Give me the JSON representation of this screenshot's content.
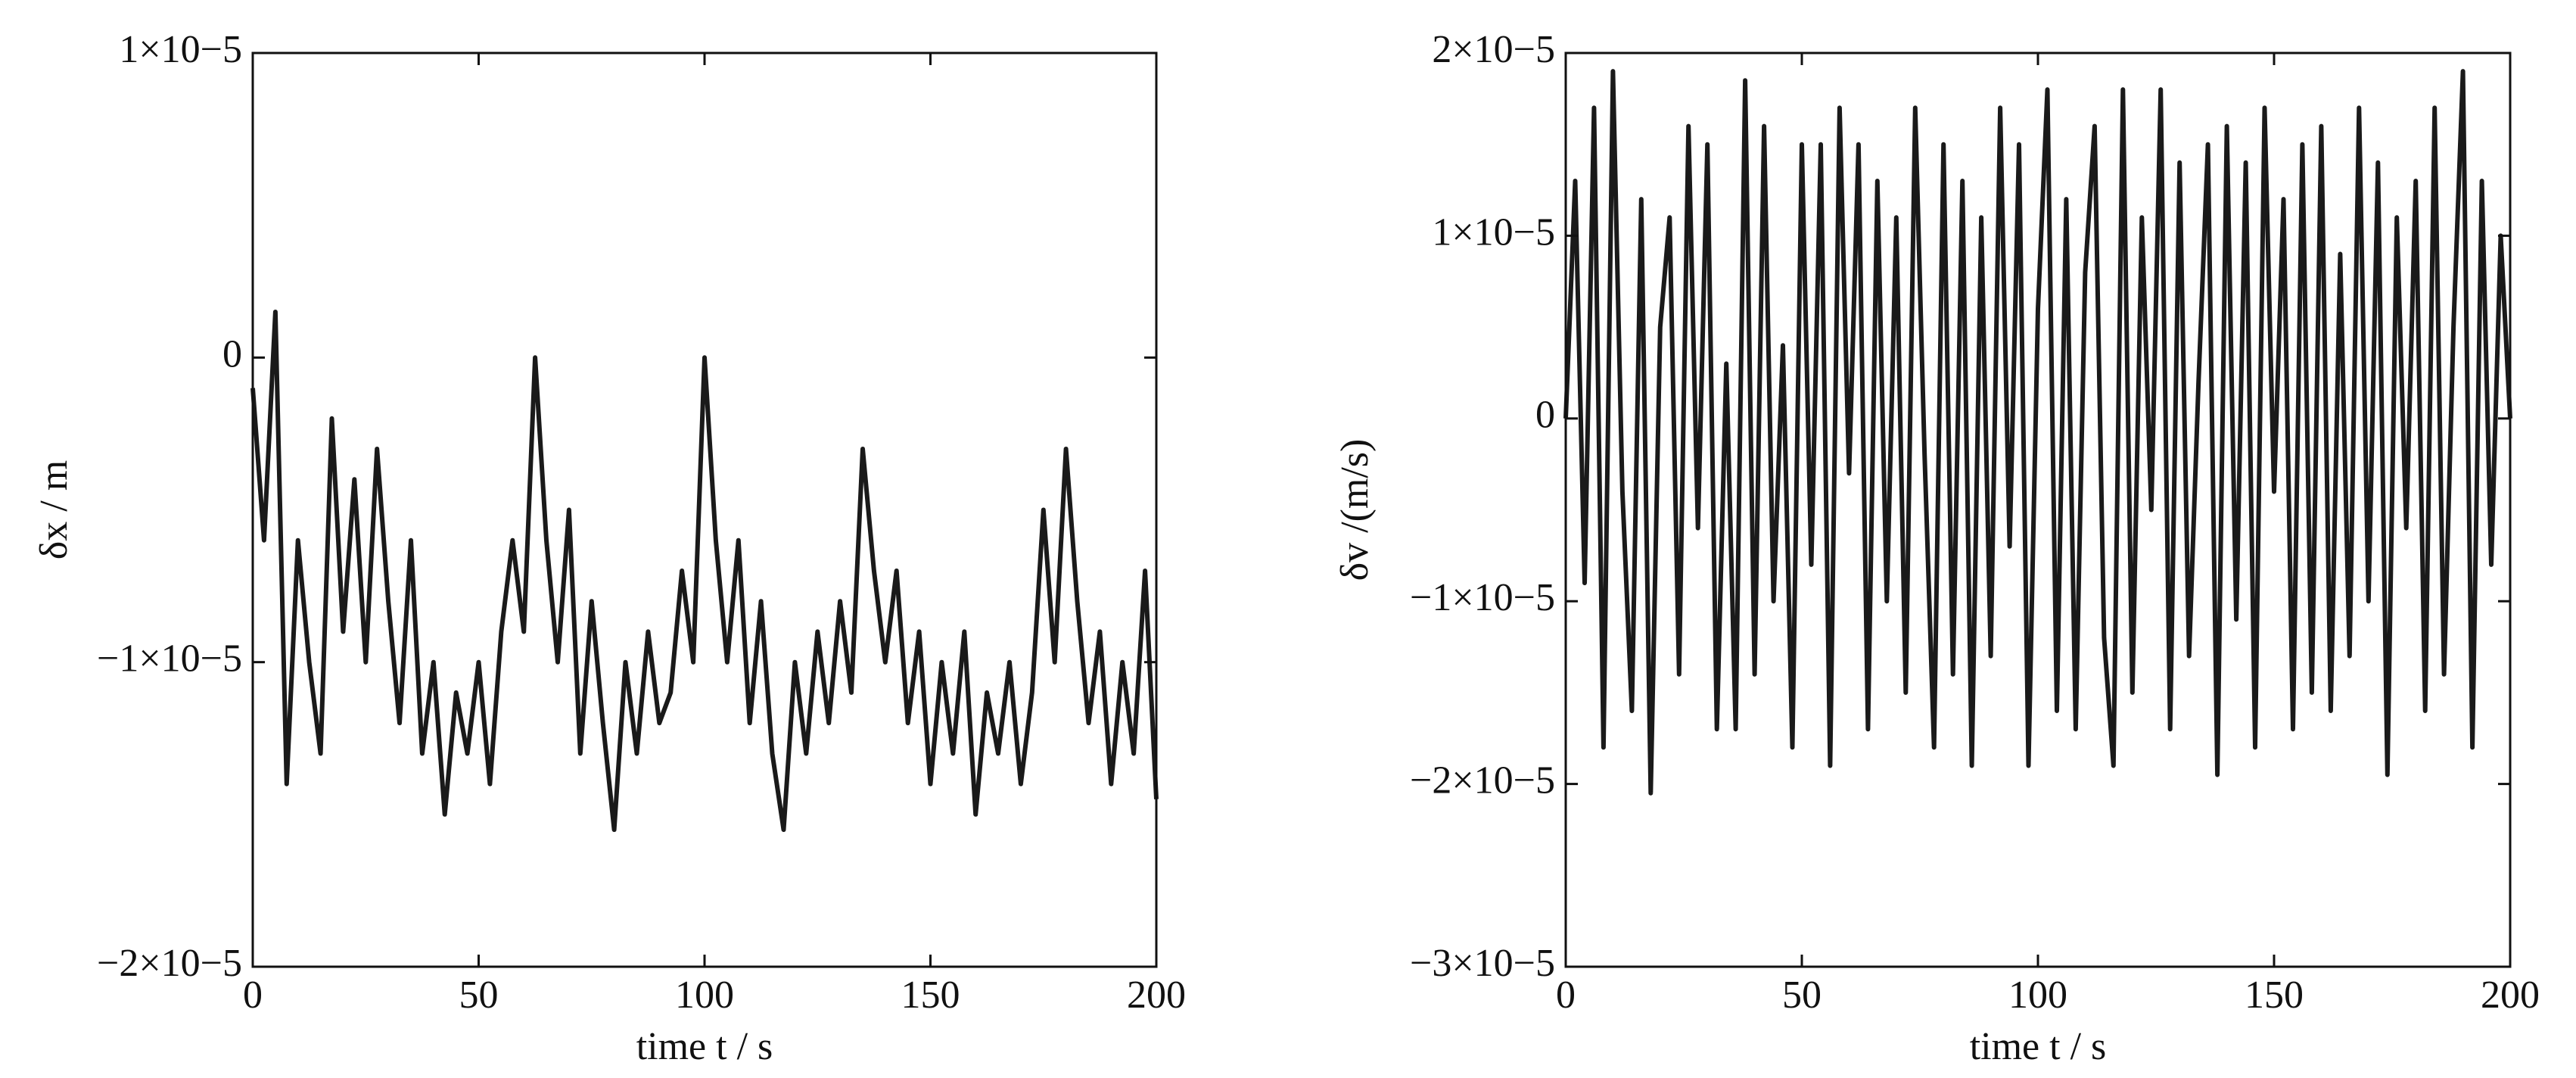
{
  "chart_data": [
    {
      "type": "line",
      "ylabel": "δx / m",
      "xlabel": "time t / s",
      "xlim": [
        0,
        200
      ],
      "xticks": [
        0,
        50,
        100,
        150,
        200
      ],
      "ylim": [
        -2e-05,
        1e-05
      ],
      "yticks": [
        {
          "value": -2e-05,
          "label": "−2×10−5"
        },
        {
          "value": -1e-05,
          "label": "−1×10−5"
        },
        0,
        {
          "value": 1e-05,
          "label": "1×10−5"
        }
      ],
      "series": [
        {
          "color": "#1a1a1a",
          "x": [
            0,
            2.5,
            5,
            7.5,
            10,
            12.5,
            15,
            17.5,
            20,
            22.5,
            25,
            27.5,
            30,
            32.5,
            35,
            37.5,
            40,
            42.5,
            45,
            47.5,
            50,
            52.5,
            55,
            57.5,
            60,
            62.5,
            65,
            67.5,
            70,
            72.5,
            75,
            77.5,
            80,
            82.5,
            85,
            87.5,
            90,
            92.5,
            95,
            97.5,
            100,
            102.5,
            105,
            107.5,
            110,
            112.5,
            115,
            117.5,
            120,
            122.5,
            125,
            127.5,
            130,
            132.5,
            135,
            137.5,
            140,
            142.5,
            145,
            147.5,
            150,
            152.5,
            155,
            157.5,
            160,
            162.5,
            165,
            167.5,
            170,
            172.5,
            175,
            177.5,
            180,
            182.5,
            185,
            187.5,
            190,
            192.5,
            195,
            197.5,
            200
          ],
          "values": [
            -1e-06,
            -6e-06,
            1.5e-06,
            -1.4e-05,
            -6e-06,
            -1e-05,
            -1.3e-05,
            -2e-06,
            -9e-06,
            -4e-06,
            -1e-05,
            -3e-06,
            -8e-06,
            -1.2e-05,
            -6e-06,
            -1.3e-05,
            -1e-05,
            -1.5e-05,
            -1.1e-05,
            -1.3e-05,
            -1e-05,
            -1.4e-05,
            -9e-06,
            -6e-06,
            -9e-06,
            0,
            -6e-06,
            -1e-05,
            -5e-06,
            -1.3e-05,
            -8e-06,
            -1.2e-05,
            -1.55e-05,
            -1e-05,
            -1.3e-05,
            -9e-06,
            -1.2e-05,
            -1.1e-05,
            -7e-06,
            -1e-05,
            0,
            -6e-06,
            -1e-05,
            -6e-06,
            -1.2e-05,
            -8e-06,
            -1.3e-05,
            -1.55e-05,
            -1e-05,
            -1.3e-05,
            -9e-06,
            -1.2e-05,
            -8e-06,
            -1.1e-05,
            -3e-06,
            -7e-06,
            -1e-05,
            -7e-06,
            -1.2e-05,
            -9e-06,
            -1.4e-05,
            -1e-05,
            -1.3e-05,
            -9e-06,
            -1.5e-05,
            -1.1e-05,
            -1.3e-05,
            -1e-05,
            -1.4e-05,
            -1.1e-05,
            -5e-06,
            -1e-05,
            -3e-06,
            -8e-06,
            -1.2e-05,
            -9e-06,
            -1.4e-05,
            -1e-05,
            -1.3e-05,
            -7e-06,
            -1.45e-05
          ]
        }
      ]
    },
    {
      "type": "line",
      "ylabel": "δv /(m/s)",
      "xlabel": "time t / s",
      "xlim": [
        0,
        200
      ],
      "xticks": [
        0,
        50,
        100,
        150,
        200
      ],
      "ylim": [
        -3e-05,
        2e-05
      ],
      "yticks": [
        {
          "value": -3e-05,
          "label": "−3×10−5"
        },
        {
          "value": -2e-05,
          "label": "−2×10−5"
        },
        {
          "value": -1e-05,
          "label": "−1×10−5"
        },
        0,
        {
          "value": 1e-05,
          "label": "1×10−5"
        },
        {
          "value": 2e-05,
          "label": "2×10−5"
        }
      ],
      "series": [
        {
          "color": "#1a1a1a",
          "x": [
            0,
            2,
            4,
            6,
            8,
            10,
            12,
            14,
            16,
            18,
            20,
            22,
            24,
            26,
            28,
            30,
            32,
            34,
            36,
            38,
            40,
            42,
            44,
            46,
            48,
            50,
            52,
            54,
            56,
            58,
            60,
            62,
            64,
            66,
            68,
            70,
            72,
            74,
            76,
            78,
            80,
            82,
            84,
            86,
            88,
            90,
            92,
            94,
            96,
            98,
            100,
            102,
            104,
            106,
            108,
            110,
            112,
            114,
            116,
            118,
            120,
            122,
            124,
            126,
            128,
            130,
            132,
            134,
            136,
            138,
            140,
            142,
            144,
            146,
            148,
            150,
            152,
            154,
            156,
            158,
            160,
            162,
            164,
            166,
            168,
            170,
            172,
            174,
            176,
            178,
            180,
            182,
            184,
            186,
            188,
            190,
            192,
            194,
            196,
            198,
            200
          ],
          "values": [
            0,
            1.3e-05,
            -9e-06,
            1.7e-05,
            -1.8e-05,
            1.9e-05,
            -4e-06,
            -1.6e-05,
            1.2e-05,
            -2.05e-05,
            5e-06,
            1.1e-05,
            -1.4e-05,
            1.6e-05,
            -6e-06,
            1.5e-05,
            -1.7e-05,
            3e-06,
            -1.7e-05,
            1.85e-05,
            -1.4e-05,
            1.6e-05,
            -1e-05,
            4e-06,
            -1.8e-05,
            1.5e-05,
            -8e-06,
            1.5e-05,
            -1.9e-05,
            1.7e-05,
            -3e-06,
            1.5e-05,
            -1.7e-05,
            1.3e-05,
            -1e-05,
            1.1e-05,
            -1.5e-05,
            1.7e-05,
            -2e-06,
            -1.8e-05,
            1.5e-05,
            -1.4e-05,
            1.3e-05,
            -1.9e-05,
            1.1e-05,
            -1.3e-05,
            1.7e-05,
            -7e-06,
            1.5e-05,
            -1.9e-05,
            6e-06,
            1.8e-05,
            -1.6e-05,
            1.2e-05,
            -1.7e-05,
            8e-06,
            1.6e-05,
            -1.2e-05,
            -1.9e-05,
            1.8e-05,
            -1.5e-05,
            1.1e-05,
            -5e-06,
            1.8e-05,
            -1.7e-05,
            1.4e-05,
            -1.3e-05,
            2e-06,
            1.5e-05,
            -1.95e-05,
            1.6e-05,
            -1.1e-05,
            1.4e-05,
            -1.8e-05,
            1.7e-05,
            -4e-06,
            1.2e-05,
            -1.7e-05,
            1.5e-05,
            -1.5e-05,
            1.6e-05,
            -1.6e-05,
            9e-06,
            -1.3e-05,
            1.7e-05,
            -1e-05,
            1.4e-05,
            -1.95e-05,
            1.1e-05,
            -6e-06,
            1.3e-05,
            -1.6e-05,
            1.7e-05,
            -1.4e-05,
            5e-06,
            1.9e-05,
            -1.8e-05,
            1.3e-05,
            -8e-06,
            1e-05,
            0
          ]
        }
      ]
    }
  ]
}
